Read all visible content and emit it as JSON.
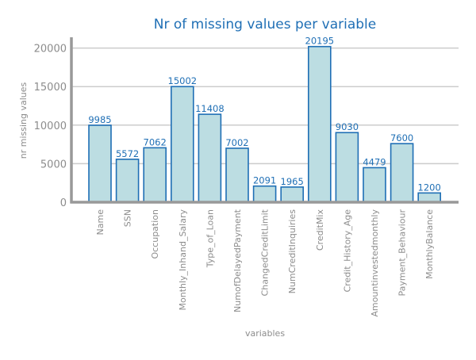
{
  "chart_data": {
    "type": "bar",
    "title": "Nr of missing values per variable",
    "xlabel": "variables",
    "ylabel": "nr missing values",
    "categories": [
      "Name",
      "SSN",
      "Occupation",
      "Monthly_Inhand_Salary",
      "Type_of_Loan",
      "NumofDelayedPayment",
      "ChangedCreditLimit",
      "NumCreditInquiries",
      "CreditMix",
      "Credit_History_Age",
      "Amountinvestedmonthly",
      "Payment_Behaviour",
      "MonthlyBalance"
    ],
    "values": [
      9985,
      5572,
      7062,
      15002,
      11408,
      7002,
      2091,
      1965,
      20195,
      9030,
      4479,
      7600,
      1200
    ],
    "ylim": [
      0,
      21400
    ],
    "yticks": [
      0,
      5000,
      10000,
      15000,
      20000
    ],
    "grid": "horizontal",
    "data_labels": true
  },
  "colors": {
    "bar_fill": "#bcdde2",
    "bar_stroke": "#1f6fb5",
    "title": "#1f6fb5",
    "value_label": "#1f6fb5",
    "axis": "#999999",
    "grid": "#cccccc",
    "tick_text": "#8c8c8c"
  }
}
